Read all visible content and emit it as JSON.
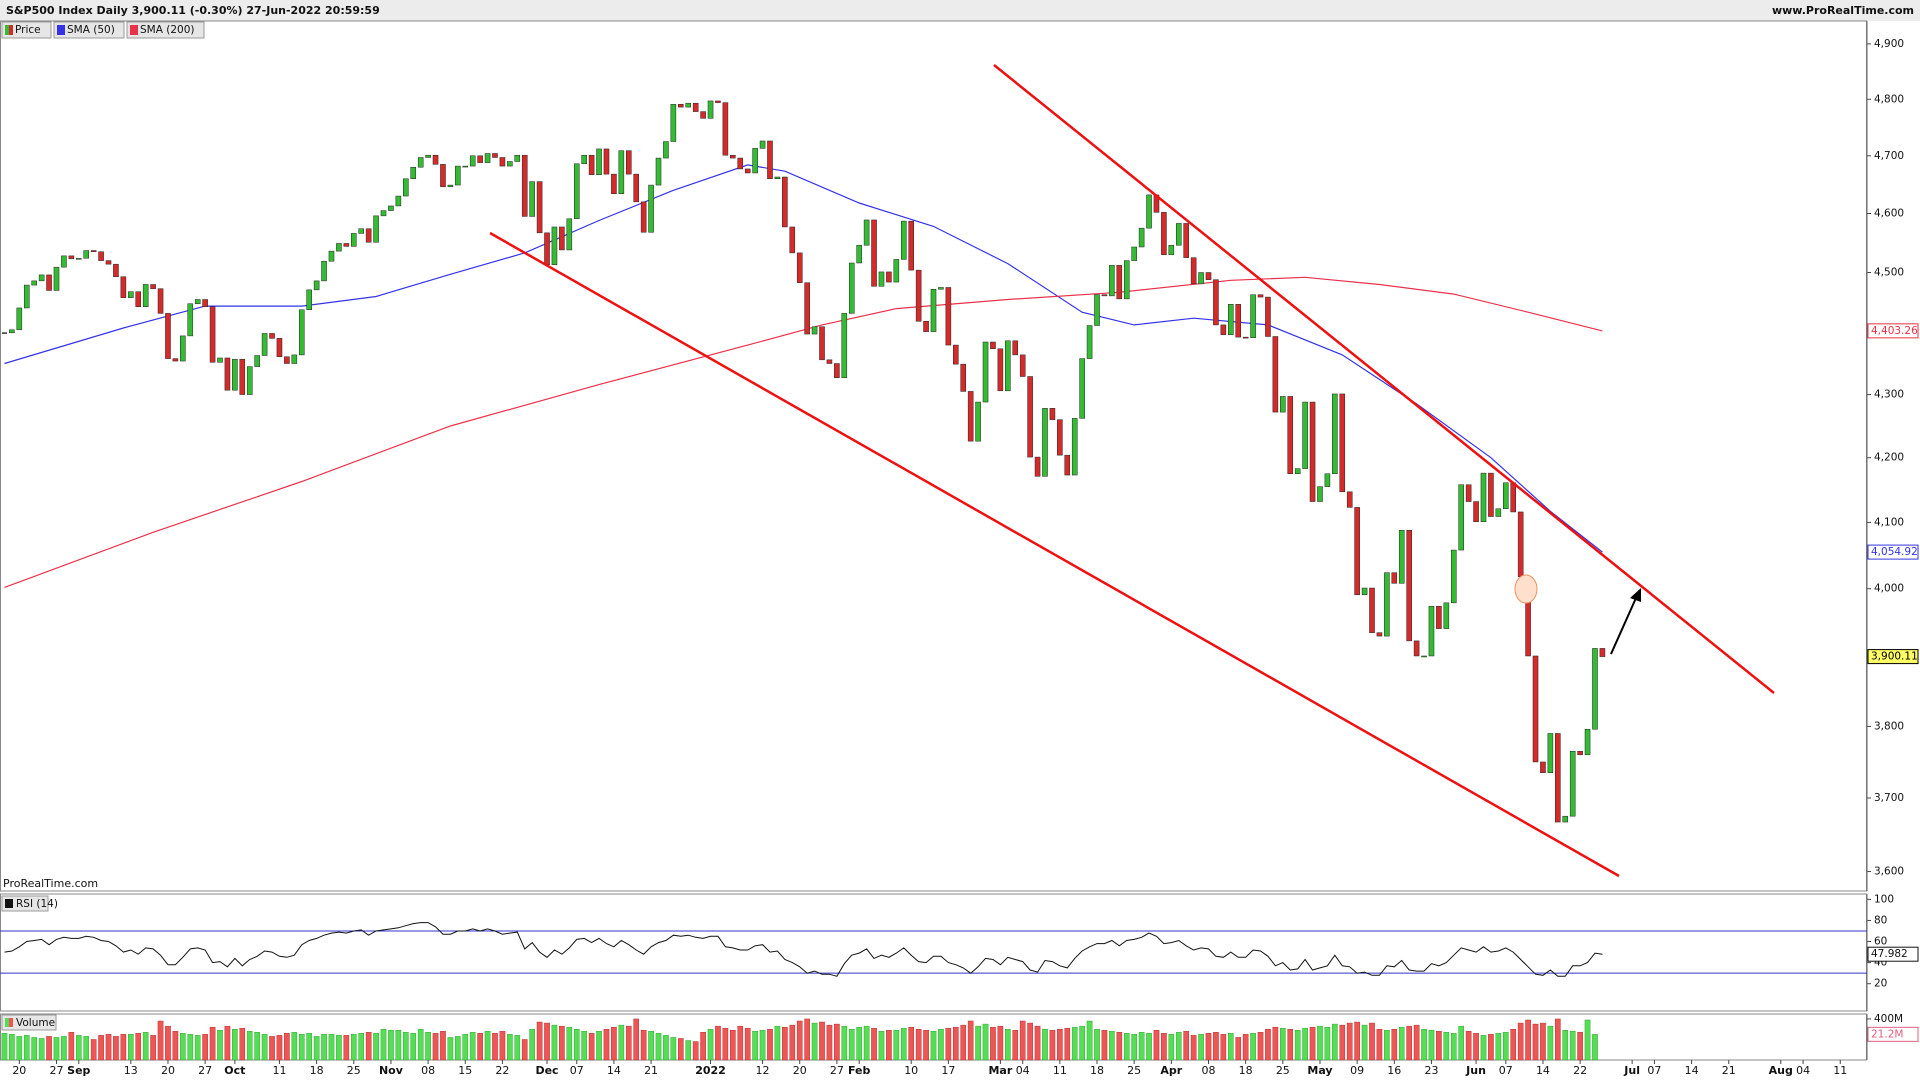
{
  "header": {
    "site": "www.ProRealTime.com"
  },
  "chart_data": [
    {
      "type": "candlestick",
      "title": "S&P500 Index Daily 3,900.11 (-0.30%) 27-Jun-2022 20:59:59",
      "watermark": "ProRealTime.com",
      "log_scale": true,
      "xlim": [
        -0.6,
        250.6
      ],
      "ylim": [
        3574,
        4942
      ],
      "yticks": [
        {
          "value": 3600,
          "label": "3,600"
        },
        {
          "value": 3700,
          "label": "3,700"
        },
        {
          "value": 3800,
          "label": "3,800"
        },
        {
          "value": 3900,
          "label": "3,900"
        },
        {
          "value": 4000,
          "label": "4,000"
        },
        {
          "value": 4100,
          "label": "4,100"
        },
        {
          "value": 4200,
          "label": "4,200"
        },
        {
          "value": 4300,
          "label": "4,300"
        },
        {
          "value": 4400,
          "label": "4,400"
        },
        {
          "value": 4500,
          "label": "4,500"
        },
        {
          "value": 4600,
          "label": "4,600"
        },
        {
          "value": 4700,
          "label": "4,700"
        },
        {
          "value": 4800,
          "label": "4,800"
        },
        {
          "value": 4900,
          "label": "4,900"
        }
      ],
      "series": [
        {
          "name": "Price",
          "up_color": "#33bb33",
          "down_color": "#d42a2a",
          "last_label": "3,900.11",
          "values": [
            4400,
            4405,
            4441,
            4479,
            4486,
            4496,
            4470,
            4509,
            4528,
            4523,
            4524,
            4537,
            4535,
            4520,
            4514,
            4493,
            4458,
            4468,
            4443,
            4480,
            4473,
            4432,
            4358,
            4354,
            4395,
            4448,
            4455,
            4443,
            4352,
            4359,
            4307,
            4357,
            4300,
            4345,
            4363,
            4399,
            4391,
            4361,
            4350,
            4364,
            4438,
            4471,
            4486,
            4519,
            4536,
            4549,
            4544,
            4566,
            4574,
            4551,
            4596,
            4605,
            4613,
            4630,
            4660,
            4680,
            4697,
            4701,
            4685,
            4646,
            4649,
            4682,
            4682,
            4700,
            4688,
            4704,
            4697,
            4682,
            4690,
            4701,
            4595,
            4655,
            4567,
            4513,
            4577,
            4538,
            4591,
            4686,
            4701,
            4667,
            4712,
            4668,
            4634,
            4709,
            4668,
            4620,
            4568,
            4649,
            4696,
            4725,
            4791,
            4786,
            4793,
            4778,
            4766,
            4797,
            4794,
            4701,
            4696,
            4677,
            4670,
            4713,
            4726,
            4660,
            4663,
            4577,
            4533,
            4483,
            4398,
            4410,
            4356,
            4350,
            4327,
            4432,
            4516,
            4546,
            4589,
            4477,
            4501,
            4484,
            4522,
            4587,
            4504,
            4419,
            4402,
            4472,
            4475,
            4380,
            4349,
            4305,
            4226,
            4288,
            4385,
            4374,
            4306,
            4387,
            4364,
            4329,
            4201,
            4171,
            4278,
            4260,
            4204,
            4173,
            4262,
            4358,
            4412,
            4463,
            4461,
            4512,
            4456,
            4520,
            4543,
            4575,
            4632,
            4602,
            4530,
            4546,
            4583,
            4525,
            4481,
            4500,
            4488,
            4413,
            4397,
            4447,
            4393,
            4392,
            4463,
            4459,
            4394,
            4272,
            4297,
            4175,
            4183,
            4288,
            4132,
            4155,
            4175,
            4301,
            4147,
            4123,
            3991,
            4001,
            3935,
            3930,
            4024,
            4008,
            4088,
            3923,
            3901,
            3901,
            3974,
            3941,
            3979,
            4058,
            4158,
            4132,
            4101,
            4176,
            4109,
            4121,
            4161,
            4116,
            4018,
            3901,
            3750,
            3735,
            3790,
            3667,
            3675,
            3765,
            3760,
            3796,
            3912,
            3900.11
          ]
        },
        {
          "name": "SMA (50)",
          "color": "#3434e6",
          "last_label": "4,054.92",
          "x": [
            0,
            16,
            27,
            40,
            50,
            60,
            70,
            80,
            90,
            100,
            105,
            115,
            125,
            135,
            145,
            152,
            160,
            170,
            180,
            190,
            200,
            208,
            215
          ],
          "values": [
            4350,
            4408,
            4444,
            4444,
            4460,
            4497,
            4533,
            4588,
            4640,
            4684,
            4673,
            4618,
            4578,
            4515,
            4434,
            4413,
            4424,
            4413,
            4364,
            4285,
            4200,
            4117,
            4054.92
          ]
        },
        {
          "name": "SMA (200)",
          "color": "#e8324a",
          "last_label": "4,403.26",
          "x": [
            0,
            20,
            40,
            60,
            80,
            100,
            110,
            120,
            135,
            150,
            165,
            175,
            185,
            195,
            205,
            215
          ],
          "values": [
            4002,
            4085,
            4163,
            4250,
            4316,
            4380,
            4413,
            4440,
            4455,
            4467,
            4487,
            4492,
            4480,
            4464,
            4434,
            4403.26
          ]
        }
      ]
    },
    {
      "type": "line",
      "title": "RSI (14)",
      "xlim": [
        -0.6,
        250.6
      ],
      "ylim": [
        -5.9,
        105.1
      ],
      "yticks": [
        100,
        80,
        60,
        40,
        20
      ],
      "levels": [
        70,
        30
      ],
      "level_color": "#3333cc",
      "series": [
        {
          "color": "#111111",
          "values": [
            50,
            51,
            55,
            60,
            61,
            62,
            57,
            62,
            64,
            63,
            63,
            65,
            64,
            61,
            60,
            56,
            50,
            52,
            48,
            54,
            53,
            47,
            38,
            38,
            45,
            53,
            54,
            52,
            40,
            41,
            36,
            44,
            37,
            43,
            46,
            51,
            50,
            46,
            45,
            47,
            57,
            61,
            63,
            66,
            68,
            69,
            68,
            70,
            71,
            66,
            70,
            71,
            72,
            73,
            75,
            77,
            78,
            78,
            74,
            67,
            67,
            70,
            70,
            72,
            70,
            72,
            70,
            67,
            68,
            69,
            53,
            59,
            50,
            45,
            52,
            48,
            54,
            62,
            63,
            59,
            63,
            58,
            55,
            61,
            57,
            52,
            48,
            55,
            59,
            61,
            66,
            65,
            66,
            64,
            63,
            65,
            65,
            55,
            54,
            52,
            52,
            56,
            57,
            50,
            51,
            43,
            40,
            36,
            30,
            32,
            29,
            29,
            27,
            39,
            47,
            49,
            53,
            44,
            47,
            45,
            49,
            54,
            47,
            41,
            40,
            46,
            46,
            40,
            38,
            35,
            30,
            36,
            44,
            43,
            38,
            45,
            43,
            41,
            33,
            31,
            42,
            41,
            37,
            35,
            44,
            51,
            55,
            58,
            58,
            61,
            56,
            61,
            62,
            64,
            68,
            65,
            58,
            59,
            61,
            56,
            52,
            54,
            53,
            46,
            45,
            50,
            45,
            45,
            52,
            51,
            46,
            37,
            40,
            33,
            34,
            43,
            33,
            35,
            37,
            47,
            37,
            36,
            30,
            31,
            28,
            28,
            37,
            36,
            42,
            33,
            32,
            32,
            39,
            37,
            40,
            47,
            54,
            52,
            50,
            55,
            50,
            51,
            54,
            50,
            43,
            36,
            29,
            28,
            33,
            27,
            27,
            37,
            37,
            40,
            49,
            47.982
          ]
        }
      ]
    },
    {
      "type": "bar",
      "title": "Volume",
      "last_label": "21.2M",
      "xlim": [
        -0.6,
        250.6
      ],
      "ylim": [
        0,
        448
      ],
      "yticks": [
        {
          "value": 400,
          "label": "400M"
        }
      ],
      "values": [
        260,
        250,
        230,
        240,
        220,
        210,
        230,
        220,
        230,
        270,
        240,
        230,
        200,
        240,
        250,
        230,
        250,
        250,
        260,
        270,
        240,
        380,
        330,
        280,
        260,
        250,
        240,
        250,
        320,
        290,
        330,
        300,
        310,
        280,
        270,
        250,
        230,
        240,
        260,
        270,
        250,
        260,
        230,
        250,
        250,
        240,
        240,
        250,
        260,
        270,
        260,
        300,
        290,
        290,
        270,
        260,
        300,
        270,
        260,
        280,
        220,
        230,
        250,
        270,
        260,
        280,
        260,
        280,
        250,
        240,
        200,
        300,
        370,
        360,
        340,
        330,
        320,
        300,
        280,
        260,
        280,
        300,
        320,
        340,
        330,
        400,
        290,
        280,
        260,
        240,
        220,
        210,
        190,
        180,
        270,
        300,
        330,
        310,
        290,
        330,
        310,
        280,
        290,
        300,
        330,
        320,
        340,
        380,
        400,
        360,
        370,
        340,
        350,
        330,
        300,
        320,
        330,
        310,
        280,
        290,
        290,
        310,
        320,
        300,
        290,
        280,
        300,
        310,
        320,
        340,
        380,
        330,
        350,
        320,
        330,
        300,
        290,
        380,
        360,
        330,
        300,
        290,
        300,
        310,
        320,
        330,
        380,
        300,
        290,
        280,
        270,
        260,
        250,
        270,
        260,
        290,
        260,
        250,
        270,
        280,
        240,
        250,
        260,
        270,
        250,
        260,
        220,
        250,
        260,
        270,
        300,
        320,
        310,
        300,
        290,
        310,
        320,
        330,
        320,
        350,
        340,
        360,
        370,
        340,
        360,
        300,
        290,
        300,
        320,
        330,
        340,
        300,
        290,
        280,
        270,
        260,
        330,
        280,
        260,
        240,
        250,
        260,
        270,
        300,
        360,
        390,
        350,
        360,
        330,
        400,
        290,
        280,
        270,
        390,
        250
      ],
      "xticks": [
        {
          "value": 2,
          "label": "20"
        },
        {
          "value": 7,
          "label": "27"
        },
        {
          "value": 10,
          "label": "Sep"
        },
        {
          "value": 17,
          "label": "13"
        },
        {
          "value": 22,
          "label": "20"
        },
        {
          "value": 27,
          "label": "27"
        },
        {
          "value": 31,
          "label": "Oct"
        },
        {
          "value": 37,
          "label": "11"
        },
        {
          "value": 42,
          "label": "18"
        },
        {
          "value": 47,
          "label": "25"
        },
        {
          "value": 52,
          "label": "Nov"
        },
        {
          "value": 57,
          "label": "08"
        },
        {
          "value": 62,
          "label": "15"
        },
        {
          "value": 67,
          "label": "22"
        },
        {
          "value": 73,
          "label": "Dec"
        },
        {
          "value": 77,
          "label": "07"
        },
        {
          "value": 82,
          "label": "14"
        },
        {
          "value": 87,
          "label": "21"
        },
        {
          "value": 95,
          "label": "2022"
        },
        {
          "value": 102,
          "label": "12"
        },
        {
          "value": 107,
          "label": "20"
        },
        {
          "value": 112,
          "label": "27"
        },
        {
          "value": 115,
          "label": "Feb"
        },
        {
          "value": 122,
          "label": "10"
        },
        {
          "value": 127,
          "label": "17"
        },
        {
          "value": 134,
          "label": "Mar"
        },
        {
          "value": 137,
          "label": "04"
        },
        {
          "value": 142,
          "label": "11"
        },
        {
          "value": 147,
          "label": "18"
        },
        {
          "value": 152,
          "label": "25"
        },
        {
          "value": 157,
          "label": "Apr"
        },
        {
          "value": 162,
          "label": "08"
        },
        {
          "value": 167,
          "label": "18"
        },
        {
          "value": 172,
          "label": "25"
        },
        {
          "value": 177,
          "label": "May"
        },
        {
          "value": 182,
          "label": "09"
        },
        {
          "value": 187,
          "label": "16"
        },
        {
          "value": 192,
          "label": "23"
        },
        {
          "value": 198,
          "label": "Jun"
        },
        {
          "value": 202,
          "label": "07"
        },
        {
          "value": 207,
          "label": "14"
        },
        {
          "value": 212,
          "label": "22"
        },
        {
          "value": 219,
          "label": "Jul"
        },
        {
          "value": 222,
          "label": "07"
        },
        {
          "value": 227,
          "label": "14"
        },
        {
          "value": 232,
          "label": "21"
        },
        {
          "value": 239,
          "label": "Aug"
        },
        {
          "value": 242,
          "label": "04"
        },
        {
          "value": 247,
          "label": "11"
        }
      ]
    }
  ]
}
